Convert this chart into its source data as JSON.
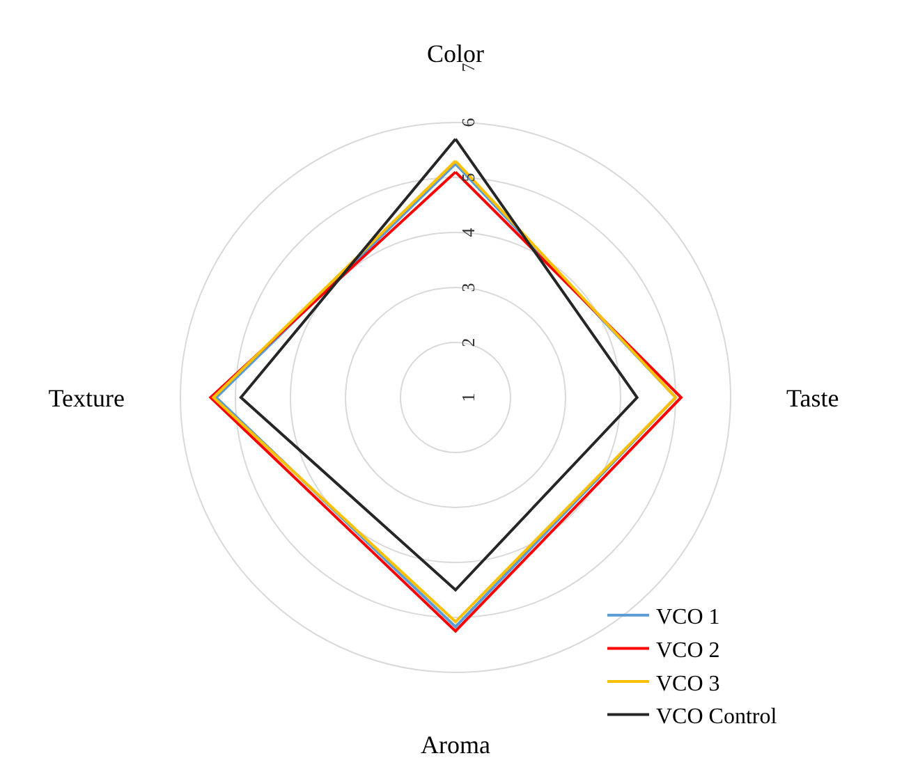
{
  "chart_data": {
    "type": "radar",
    "categories": [
      "Color",
      "Taste",
      "Aroma",
      "Texture"
    ],
    "series": [
      {
        "name": "VCO 1",
        "color": "#5b9bd5",
        "values": [
          5.25,
          5.0,
          5.17,
          5.35
        ]
      },
      {
        "name": "VCO 2",
        "color": "#ff0000",
        "values": [
          5.1,
          5.1,
          5.25,
          5.45
        ]
      },
      {
        "name": "VCO 3",
        "color": "#ffc000",
        "values": [
          5.3,
          5.0,
          5.08,
          5.4
        ]
      },
      {
        "name": "VCO Control",
        "color": "#262626",
        "values": [
          5.7,
          4.3,
          4.5,
          4.9
        ]
      }
    ],
    "ylim": [
      1,
      7
    ],
    "yticks": [
      1,
      2,
      3,
      4,
      5,
      6,
      7
    ],
    "grid": true,
    "legend": "bottom right",
    "line_style": "solid",
    "marker": "none"
  }
}
